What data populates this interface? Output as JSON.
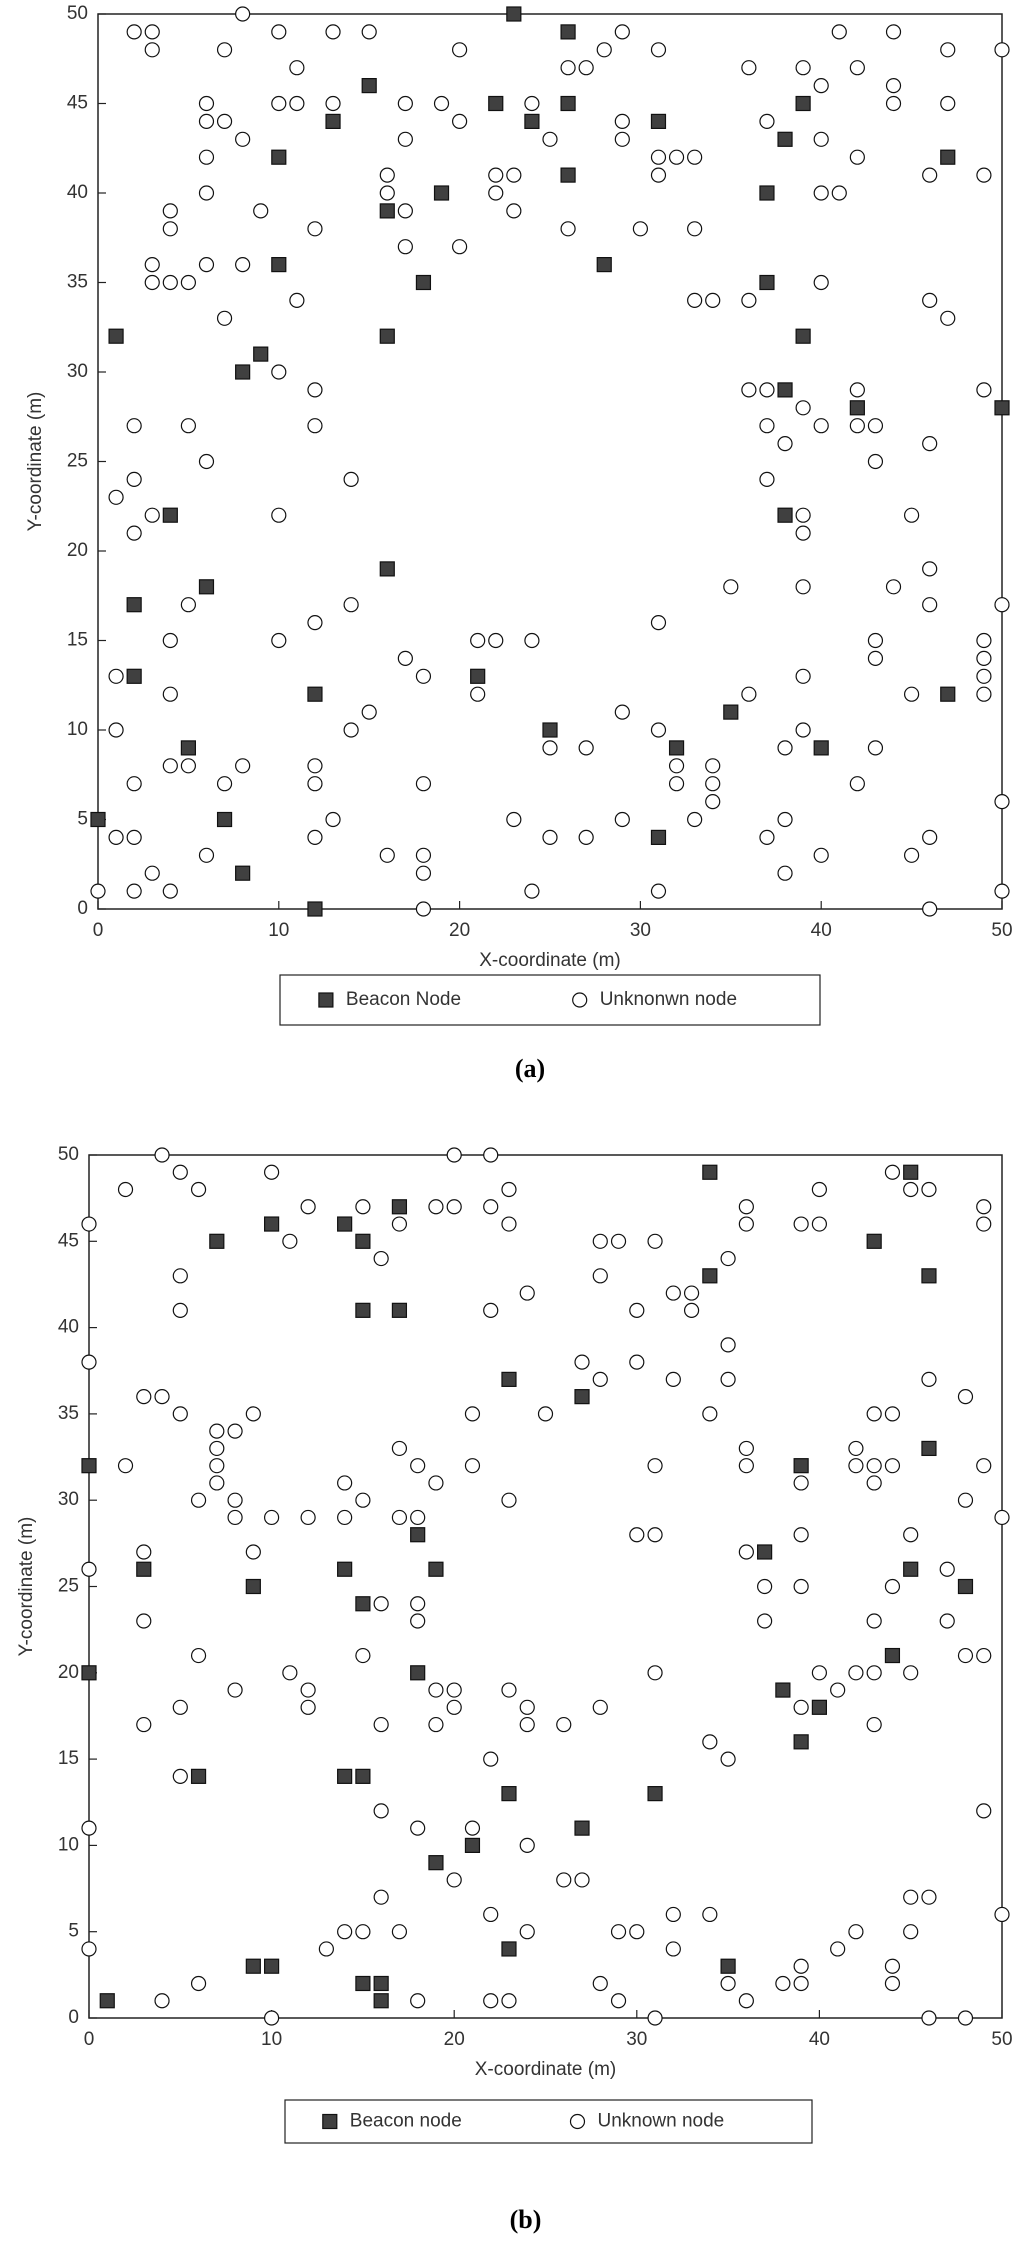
{
  "chart_data": [
    {
      "type": "scatter",
      "caption": "(a)",
      "xlabel": "X-coordinate (m)",
      "ylabel": "Y-coordinate (m)",
      "xlim": [
        0,
        50
      ],
      "ylim": [
        0,
        50
      ],
      "xticks": [
        0,
        10,
        20,
        30,
        40,
        50
      ],
      "yticks": [
        0,
        5,
        10,
        15,
        20,
        25,
        30,
        35,
        40,
        45,
        50
      ],
      "legend": "bottom",
      "series": [
        {
          "name": "Beacon Node",
          "color": "#404040",
          "marker": "square",
          "x": [
            0,
            1,
            2,
            2,
            4,
            5,
            6,
            7,
            8,
            8,
            9,
            10,
            10,
            12,
            12,
            13,
            15,
            16,
            16,
            16,
            18,
            19,
            22,
            23,
            24,
            26,
            26,
            26,
            28,
            31,
            31,
            32,
            25,
            35,
            37,
            37,
            38,
            38,
            38,
            39,
            39,
            40,
            42,
            47,
            47,
            50,
            21
          ],
          "values": [
            5,
            32,
            17,
            13,
            22,
            9,
            18,
            5,
            30,
            2,
            31,
            42,
            36,
            12,
            0,
            44,
            46,
            39,
            32,
            19,
            35,
            40,
            45,
            50,
            44,
            49,
            45,
            41,
            36,
            44,
            4,
            9,
            10,
            11,
            40,
            35,
            43,
            29,
            22,
            45,
            32,
            9,
            28,
            42,
            12,
            28,
            13
          ]
        },
        {
          "name": "Unknonwn node",
          "color": "#ffffff",
          "marker": "circle",
          "x": [
            0,
            1,
            1,
            1,
            1,
            2,
            2,
            2,
            2,
            2,
            2,
            2,
            3,
            3,
            3,
            3,
            3,
            3,
            4,
            4,
            4,
            4,
            4,
            4,
            4,
            5,
            5,
            5,
            5,
            6,
            6,
            6,
            6,
            6,
            6,
            6,
            7,
            7,
            7,
            7,
            8,
            8,
            8,
            8,
            9,
            10,
            10,
            10,
            10,
            10,
            11,
            11,
            11,
            12,
            12,
            12,
            12,
            12,
            12,
            12,
            13,
            13,
            13,
            14,
            14,
            14,
            15,
            15,
            16,
            16,
            16,
            17,
            17,
            17,
            17,
            17,
            18,
            18,
            18,
            18,
            18,
            19,
            20,
            20,
            20,
            21,
            21,
            22,
            22,
            22,
            23,
            23,
            23,
            24,
            24,
            24,
            25,
            25,
            25,
            26,
            26,
            27,
            27,
            27,
            28,
            29,
            29,
            29,
            29,
            29,
            30,
            31,
            31,
            31,
            31,
            31,
            31,
            32,
            32,
            32,
            33,
            33,
            33,
            33,
            34,
            34,
            34,
            34,
            35,
            36,
            36,
            36,
            36,
            37,
            37,
            37,
            37,
            37,
            38,
            38,
            38,
            38,
            39,
            39,
            39,
            39,
            39,
            39,
            39,
            40,
            40,
            40,
            40,
            40,
            40,
            41,
            41,
            42,
            42,
            42,
            42,
            42,
            43,
            43,
            43,
            43,
            43,
            44,
            44,
            44,
            44,
            45,
            45,
            45,
            46,
            46,
            46,
            46,
            46,
            46,
            46,
            47,
            47,
            47,
            49,
            49,
            49,
            49,
            49,
            49,
            50,
            50,
            50,
            50
          ],
          "values": [
            1,
            4,
            10,
            13,
            23,
            24,
            21,
            27,
            7,
            4,
            1,
            49,
            49,
            48,
            36,
            35,
            22,
            2,
            39,
            38,
            35,
            15,
            12,
            8,
            1,
            35,
            27,
            17,
            8,
            45,
            44,
            42,
            40,
            36,
            25,
            3,
            48,
            44,
            33,
            7,
            50,
            43,
            36,
            8,
            39,
            49,
            45,
            30,
            22,
            15,
            47,
            45,
            34,
            38,
            29,
            27,
            16,
            8,
            7,
            4,
            49,
            45,
            5,
            24,
            17,
            10,
            49,
            11,
            41,
            40,
            3,
            45,
            43,
            39,
            37,
            14,
            13,
            7,
            3,
            2,
            0,
            45,
            48,
            44,
            37,
            15,
            12,
            41,
            40,
            15,
            41,
            39,
            5,
            45,
            15,
            1,
            43,
            9,
            4,
            47,
            38,
            47,
            9,
            4,
            48,
            49,
            44,
            43,
            11,
            5,
            38,
            48,
            42,
            41,
            16,
            10,
            1,
            42,
            8,
            7,
            42,
            38,
            34,
            5,
            34,
            8,
            7,
            6,
            18,
            47,
            34,
            29,
            12,
            44,
            29,
            27,
            24,
            4,
            26,
            9,
            5,
            2,
            47,
            28,
            22,
            21,
            18,
            13,
            10,
            46,
            43,
            40,
            35,
            27,
            3,
            49,
            40,
            47,
            42,
            29,
            27,
            7,
            27,
            25,
            15,
            14,
            9,
            49,
            46,
            45,
            18,
            22,
            12,
            3,
            41,
            34,
            26,
            19,
            17,
            4,
            0,
            48,
            45,
            33,
            41,
            29,
            15,
            14,
            13,
            12,
            48,
            17,
            6,
            1
          ]
        }
      ]
    },
    {
      "type": "scatter",
      "caption": "(b)",
      "xlabel": "X-coordinate (m)",
      "ylabel": "Y-coordinate (m)",
      "xlim": [
        0,
        50
      ],
      "ylim": [
        0,
        50
      ],
      "xticks": [
        0,
        10,
        20,
        30,
        40,
        50
      ],
      "yticks": [
        0,
        5,
        10,
        15,
        20,
        25,
        30,
        35,
        40,
        45,
        50
      ],
      "legend": "bottom",
      "series": [
        {
          "name": "Beacon node",
          "color": "#404040",
          "marker": "square",
          "x": [
            0,
            0,
            1,
            3,
            6,
            7,
            9,
            9,
            10,
            10,
            14,
            14,
            14,
            15,
            15,
            15,
            15,
            15,
            16,
            16,
            17,
            17,
            18,
            18,
            19,
            19,
            21,
            23,
            23,
            23,
            27,
            27,
            31,
            34,
            34,
            35,
            37,
            38,
            39,
            39,
            40,
            43,
            44,
            45,
            45,
            46,
            46,
            48
          ],
          "values": [
            32,
            20,
            1,
            26,
            14,
            45,
            25,
            3,
            3,
            46,
            46,
            26,
            14,
            14,
            45,
            41,
            24,
            2,
            2,
            1,
            47,
            41,
            28,
            20,
            26,
            9,
            10,
            37,
            13,
            4,
            36,
            11,
            13,
            49,
            43,
            3,
            27,
            19,
            32,
            16,
            18,
            45,
            21,
            49,
            26,
            43,
            33,
            25
          ]
        },
        {
          "name": "Unknown node",
          "color": "#ffffff",
          "marker": "circle",
          "x": [
            0,
            0,
            0,
            0,
            0,
            2,
            2,
            3,
            3,
            3,
            3,
            4,
            4,
            4,
            5,
            5,
            5,
            5,
            5,
            5,
            6,
            6,
            6,
            6,
            7,
            7,
            7,
            7,
            8,
            8,
            8,
            8,
            9,
            9,
            10,
            10,
            10,
            11,
            11,
            12,
            12,
            12,
            12,
            13,
            14,
            14,
            14,
            15,
            15,
            15,
            15,
            16,
            16,
            16,
            16,
            16,
            17,
            17,
            17,
            17,
            18,
            18,
            18,
            18,
            18,
            18,
            19,
            19,
            19,
            19,
            20,
            20,
            20,
            20,
            20,
            21,
            21,
            21,
            22,
            22,
            22,
            22,
            22,
            22,
            23,
            23,
            23,
            23,
            23,
            24,
            24,
            24,
            24,
            24,
            25,
            26,
            26,
            27,
            27,
            28,
            28,
            28,
            28,
            28,
            29,
            29,
            29,
            30,
            30,
            30,
            30,
            31,
            31,
            31,
            31,
            31,
            32,
            32,
            32,
            32,
            33,
            33,
            34,
            34,
            34,
            35,
            35,
            35,
            35,
            35,
            36,
            36,
            36,
            36,
            36,
            36,
            37,
            37,
            38,
            39,
            39,
            39,
            39,
            39,
            39,
            39,
            40,
            40,
            40,
            41,
            41,
            42,
            42,
            42,
            42,
            43,
            43,
            43,
            43,
            43,
            43,
            44,
            44,
            44,
            44,
            44,
            44,
            45,
            45,
            45,
            45,
            45,
            46,
            46,
            46,
            46,
            47,
            47,
            48,
            48,
            48,
            48,
            49,
            49,
            49,
            49,
            49,
            50,
            50
          ],
          "values": [
            46,
            38,
            26,
            11,
            4,
            48,
            32,
            36,
            27,
            23,
            17,
            50,
            36,
            1,
            49,
            43,
            41,
            35,
            18,
            14,
            48,
            30,
            21,
            2,
            34,
            33,
            32,
            31,
            34,
            30,
            29,
            19,
            35,
            27,
            49,
            29,
            0,
            45,
            20,
            47,
            29,
            19,
            18,
            4,
            31,
            29,
            5,
            47,
            30,
            21,
            5,
            44,
            24,
            17,
            12,
            7,
            46,
            33,
            29,
            5,
            32,
            29,
            24,
            23,
            11,
            1,
            47,
            31,
            19,
            17,
            50,
            47,
            19,
            18,
            8,
            35,
            32,
            11,
            50,
            47,
            41,
            15,
            6,
            1,
            48,
            46,
            30,
            19,
            1,
            42,
            18,
            17,
            10,
            5,
            35,
            17,
            8,
            38,
            8,
            45,
            43,
            37,
            18,
            2,
            45,
            5,
            1,
            41,
            38,
            28,
            5,
            45,
            32,
            28,
            20,
            0,
            42,
            37,
            6,
            4,
            42,
            41,
            35,
            16,
            6,
            44,
            39,
            37,
            15,
            2,
            47,
            46,
            33,
            32,
            27,
            1,
            25,
            23,
            2,
            46,
            31,
            28,
            25,
            18,
            3,
            2,
            48,
            46,
            20,
            19,
            4,
            33,
            32,
            20,
            5,
            35,
            32,
            31,
            23,
            20,
            17,
            35,
            32,
            25,
            3,
            2,
            49,
            48,
            28,
            20,
            7,
            5,
            48,
            37,
            7,
            0,
            26,
            23,
            36,
            30,
            21,
            0,
            47,
            46,
            32,
            21,
            12,
            29,
            6
          ]
        }
      ]
    }
  ]
}
